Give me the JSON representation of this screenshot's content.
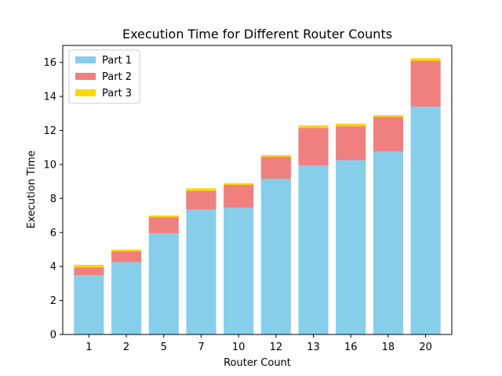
{
  "chart_data": {
    "type": "bar",
    "stacked": true,
    "title": "Execution Time for Different Router Counts",
    "xlabel": "Router Count",
    "ylabel": "Execution Time",
    "categories": [
      "1",
      "2",
      "5",
      "7",
      "10",
      "12",
      "13",
      "16",
      "18",
      "20"
    ],
    "ylim": [
      0,
      17
    ],
    "yticks": [
      0,
      2,
      4,
      6,
      8,
      10,
      12,
      14,
      16
    ],
    "grid": false,
    "legend_position": "top-left",
    "series": [
      {
        "name": "Part 1",
        "color": "#87ceeb",
        "values": [
          3.5,
          4.25,
          5.95,
          7.35,
          7.45,
          9.15,
          9.95,
          10.25,
          10.75,
          13.4
        ]
      },
      {
        "name": "Part 2",
        "color": "#f08080",
        "values": [
          0.45,
          0.65,
          0.95,
          1.1,
          1.35,
          1.3,
          2.2,
          2.0,
          2.05,
          2.7
        ]
      },
      {
        "name": "Part 3",
        "color": "#ffd700",
        "values": [
          0.15,
          0.1,
          0.1,
          0.15,
          0.1,
          0.1,
          0.15,
          0.15,
          0.1,
          0.15
        ]
      }
    ]
  }
}
